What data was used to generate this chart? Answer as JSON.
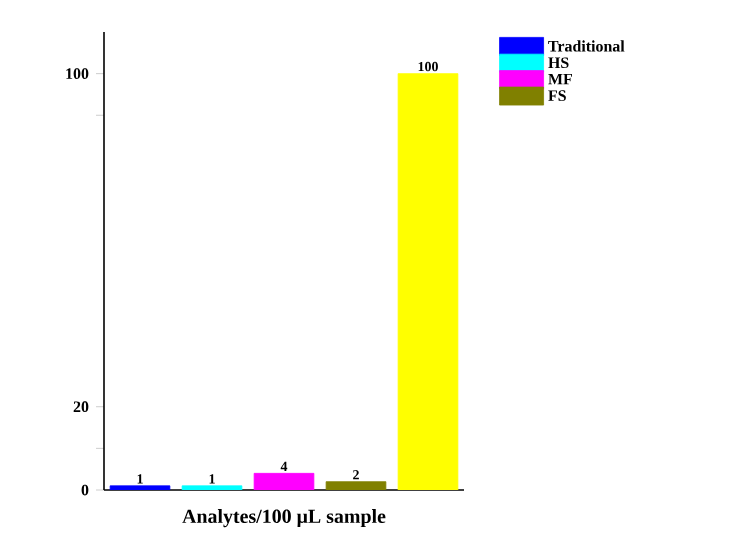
{
  "chart_data": {
    "type": "bar",
    "categories": [
      null,
      null,
      null,
      null,
      null
    ],
    "series": [
      {
        "name": "Traditional",
        "color": "#0000ff",
        "values": [
          1,
          null,
          null,
          null,
          null
        ]
      },
      {
        "name": "HS",
        "color": "#00ffff",
        "values": [
          null,
          1,
          null,
          null,
          null
        ]
      },
      {
        "name": "MF",
        "color": "#ff00ff",
        "values": [
          null,
          null,
          4,
          null,
          null
        ]
      },
      {
        "name": "FS",
        "color": "#808000",
        "values": [
          null,
          null,
          null,
          2,
          null
        ]
      },
      {
        "color": "#ffff00",
        "values": [
          null,
          null,
          null,
          null,
          100
        ]
      }
    ],
    "ylim": [
      0,
      110
    ],
    "yticks": [
      0,
      {
        "value": 10,
        "label": null
      },
      20,
      {
        "value": 90,
        "label": null
      },
      100
    ],
    "tick_labels": "y",
    "data_labels": true,
    "legend": "top right",
    "xlabel": "Analytes/100 μL sample"
  }
}
